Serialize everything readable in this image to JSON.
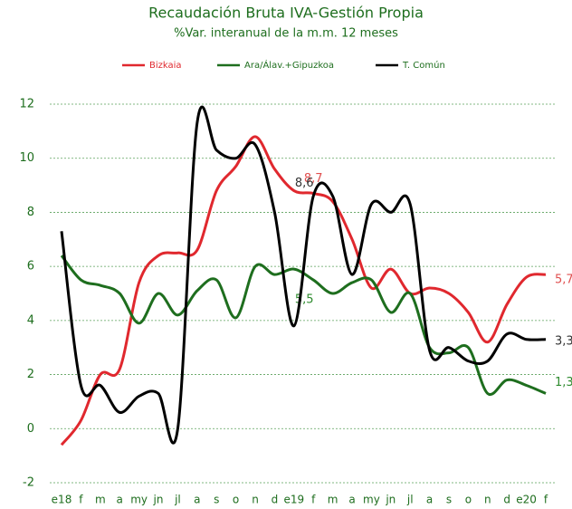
{
  "chart_data": {
    "type": "line",
    "title": "Recaudación Bruta IVA-Gestión Propia",
    "subtitle": "%Var. interanual de la m.m. 12 meses",
    "categories": [
      "e18",
      "f",
      "m",
      "a",
      "my",
      "jn",
      "jl",
      "a",
      "s",
      "o",
      "n",
      "d",
      "e19",
      "f",
      "m",
      "a",
      "my",
      "jn",
      "jl",
      "a",
      "s",
      "o",
      "n",
      "d",
      "e20",
      "f"
    ],
    "series": [
      {
        "name": "Bizkaia",
        "color": "#e0282e",
        "values": [
          -0.6,
          0.3,
          2.0,
          2.2,
          5.4,
          6.4,
          6.5,
          6.6,
          8.8,
          9.7,
          10.8,
          9.6,
          8.8,
          8.7,
          8.4,
          7.0,
          5.2,
          5.9,
          5.0,
          5.2,
          5.0,
          4.3,
          3.2,
          4.6,
          5.6,
          5.7
        ],
        "value_labels": [
          null,
          null,
          null,
          null,
          null,
          null,
          null,
          null,
          null,
          null,
          null,
          null,
          null,
          "8,7",
          null,
          null,
          null,
          null,
          null,
          null,
          null,
          null,
          null,
          null,
          null,
          "5,7"
        ]
      },
      {
        "name": "Ara/Álav.+Gipuzkoa",
        "color": "#1e6e1e",
        "values": [
          6.4,
          5.5,
          5.3,
          5.0,
          3.9,
          5.0,
          4.2,
          5.1,
          5.5,
          4.1,
          6.0,
          5.7,
          5.9,
          5.5,
          5.0,
          5.4,
          5.5,
          4.3,
          5.0,
          3.0,
          2.8,
          3.0,
          1.3,
          1.8,
          1.6,
          1.3
        ],
        "value_labels": [
          null,
          null,
          null,
          null,
          null,
          null,
          null,
          null,
          null,
          null,
          null,
          null,
          null,
          "5,5",
          null,
          null,
          null,
          null,
          null,
          null,
          null,
          null,
          null,
          null,
          null,
          "1,3"
        ]
      },
      {
        "name": "T. Común",
        "color": "#000000",
        "values": [
          7.3,
          1.6,
          1.6,
          0.6,
          1.2,
          1.3,
          0.0,
          11.3,
          10.3,
          10.0,
          10.5,
          8.0,
          3.8,
          8.6,
          8.6,
          5.7,
          8.3,
          8.0,
          8.3,
          2.9,
          3.0,
          2.5,
          2.5,
          3.5,
          3.3,
          3.3
        ],
        "value_labels": [
          null,
          null,
          null,
          null,
          null,
          null,
          null,
          null,
          null,
          null,
          null,
          null,
          null,
          "8,6",
          null,
          null,
          null,
          null,
          null,
          null,
          null,
          null,
          null,
          null,
          null,
          "3,3"
        ]
      }
    ],
    "ylim": [
      -2,
      12
    ],
    "yticks": [
      -2,
      0,
      2,
      4,
      6,
      8,
      10,
      12
    ],
    "grid": true,
    "legend": "top"
  }
}
